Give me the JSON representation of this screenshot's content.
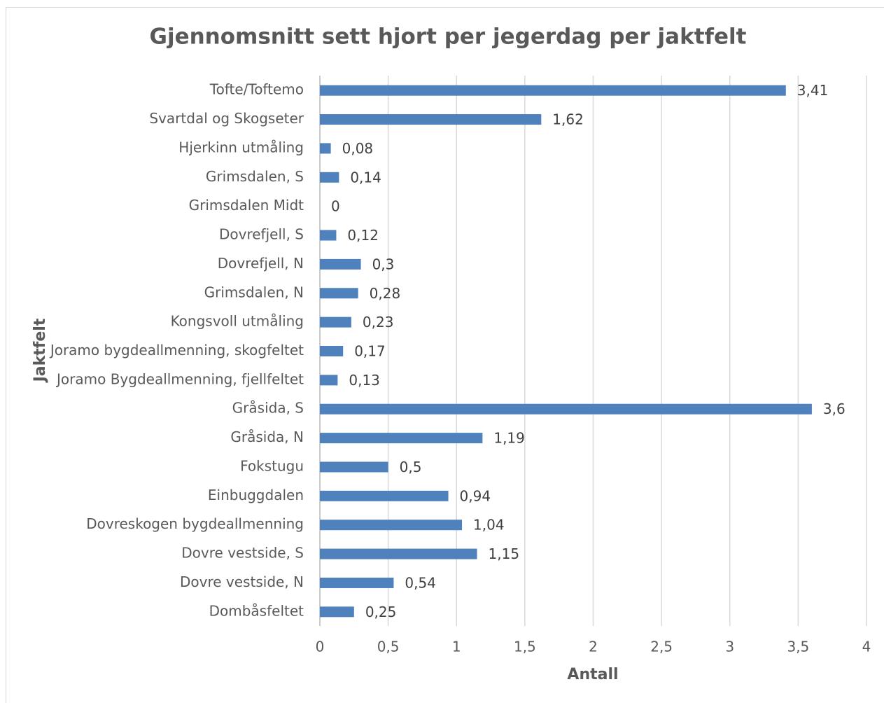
{
  "chart_data": {
    "type": "bar",
    "orientation": "horizontal",
    "title": "Gjennomsnitt sett hjort per jegerdag per jaktfelt",
    "xlabel": "Antall",
    "ylabel": "Jaktfelt",
    "categories": [
      "Tofte/Toftemo",
      "Svartdal og Skogseter",
      "Hjerkinn utmåling",
      "Grimsdalen, S",
      "Grimsdalen Midt",
      "Dovrefjell, S",
      "Dovrefjell, N",
      "Grimsdalen, N",
      "Kongsvoll utmåling",
      "Joramo bygdeallmenning, skogfeltet",
      "Joramo Bygdeallmenning, fjellfeltet",
      "Gråsida, S",
      "Gråsida, N",
      "Fokstugu",
      "Einbuggdalen",
      "Dovreskogen bygdeallmenning",
      "Dovre vestside, S",
      "Dovre vestside, N",
      "Dombåsfeltet"
    ],
    "values": [
      3.41,
      1.62,
      0.08,
      0.14,
      0,
      0.12,
      0.3,
      0.28,
      0.23,
      0.17,
      0.13,
      3.6,
      1.19,
      0.5,
      0.94,
      1.04,
      1.15,
      0.54,
      0.25
    ],
    "value_labels": [
      "3,41",
      "1,62",
      "0,08",
      "0,14",
      "0",
      "0,12",
      "0,3",
      "0,28",
      "0,23",
      "0,17",
      "0,13",
      "3,6",
      "1,19",
      "0,5",
      "0,94",
      "1,04",
      "1,15",
      "0,54",
      "0,25"
    ],
    "color": "#4f81bd",
    "xlim": [
      0,
      4
    ],
    "xticks": [
      0,
      {
        "value": 0.5,
        "label": "0,5"
      },
      1,
      {
        "value": 1.5,
        "label": "1,5"
      },
      2,
      {
        "value": 2.5,
        "label": "2,5"
      },
      3,
      {
        "value": 3.5,
        "label": "3,5"
      },
      4
    ],
    "grid": true
  }
}
